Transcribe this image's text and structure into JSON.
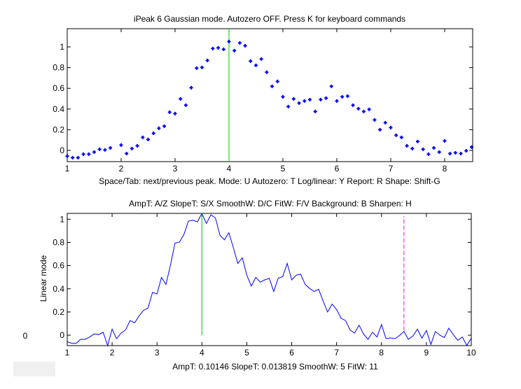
{
  "colors": {
    "data": "#0000ff",
    "peak_cursor": "#00cc00",
    "secondary_cursor": "#ff00ff",
    "axes": "#000000"
  },
  "side_value": "0",
  "chart_data": [
    {
      "type": "scatter",
      "title": "iPeak 6  Gaussian mode.       Autozero OFF.    Press K for keyboard commands",
      "xlabel": "Space/Tab: next/previous peak.  Mode: U  Autozero: T   Log/linear: Y  Report: R   Shape: Shift-G",
      "ylabel": "",
      "xlim": [
        1,
        8.52
      ],
      "ylim": [
        -0.108,
        1.176
      ],
      "xticks": [
        "1",
        "2",
        "3",
        "4",
        "5",
        "6",
        "7",
        "8"
      ],
      "yticks": [
        "0",
        "0.2",
        "0.4",
        "0.6",
        "0.8",
        "1"
      ],
      "cursor_x": 4.0,
      "x_start": 1.0,
      "x_step": 0.1,
      "values": [
        -0.056,
        -0.07,
        -0.07,
        -0.036,
        -0.036,
        -0.016,
        0.011,
        0.005,
        0.025,
        -0.11,
        0.052,
        -0.03,
        0.018,
        0.045,
        0.126,
        0.106,
        0.166,
        0.214,
        0.234,
        0.369,
        0.356,
        0.498,
        0.437,
        0.606,
        0.795,
        0.802,
        0.869,
        0.984,
        0.991,
        0.977,
        1.052,
        0.964,
        1.038,
        1.011,
        0.863,
        0.822,
        0.883,
        0.755,
        0.619,
        0.667,
        0.518,
        0.423,
        0.498,
        0.457,
        0.477,
        0.491,
        0.376,
        0.491,
        0.505,
        0.619,
        0.477,
        0.518,
        0.525,
        0.437,
        0.403,
        0.376,
        0.396,
        0.295,
        0.2,
        0.268,
        0.221,
        0.146,
        0.126,
        0.045,
        0.018,
        0.086,
        0.011,
        -0.036,
        0.025,
        -0.016,
        0.092,
        -0.03,
        -0.023,
        -0.03,
        -0.003,
        0.032
      ]
    },
    {
      "type": "line",
      "title": "AmpT: A/Z   SlopeT: S/X   SmoothW: D/C    FitW: F/V   Background: B   Sharpen: H",
      "xlabel": "AmpT: 0.10146     SlopeT: 0.013819     SmoothW: 5     FitW: 11",
      "ylabel": "Linear mode",
      "xlim": [
        1,
        10
      ],
      "ylim": [
        -0.09,
        1.05
      ],
      "xticks": [
        "1",
        "2",
        "3",
        "4",
        "5",
        "6",
        "7",
        "8",
        "9",
        "10"
      ],
      "yticks": [
        "0",
        "0.2",
        "0.4",
        "0.6",
        "0.8",
        "1"
      ],
      "peak_cursor_x": 4.0,
      "secondary_cursor_x": 8.5,
      "x_start": 1.0,
      "x_step": 0.1,
      "values": [
        -0.056,
        -0.07,
        -0.07,
        -0.036,
        -0.036,
        -0.016,
        0.011,
        0.005,
        0.025,
        -0.11,
        0.052,
        -0.03,
        0.018,
        0.045,
        0.126,
        0.106,
        0.166,
        0.214,
        0.234,
        0.369,
        0.356,
        0.498,
        0.437,
        0.606,
        0.795,
        0.802,
        0.869,
        0.984,
        0.991,
        0.977,
        1.052,
        0.964,
        1.038,
        1.011,
        0.863,
        0.822,
        0.883,
        0.755,
        0.619,
        0.667,
        0.518,
        0.423,
        0.498,
        0.457,
        0.477,
        0.491,
        0.376,
        0.491,
        0.505,
        0.619,
        0.477,
        0.518,
        0.525,
        0.437,
        0.403,
        0.376,
        0.396,
        0.295,
        0.2,
        0.268,
        0.221,
        0.146,
        0.126,
        0.045,
        0.018,
        0.086,
        0.011,
        -0.036,
        0.025,
        -0.016,
        0.092,
        -0.03,
        -0.023,
        -0.03,
        -0.003,
        0.032,
        -0.036,
        -0.006,
        0.052,
        -0.026,
        0.04,
        -0.08,
        0.032,
        0.0,
        -0.02,
        0.06,
        0.004,
        -0.044,
        -0.016,
        -0.088,
        -0.026
      ]
    }
  ]
}
